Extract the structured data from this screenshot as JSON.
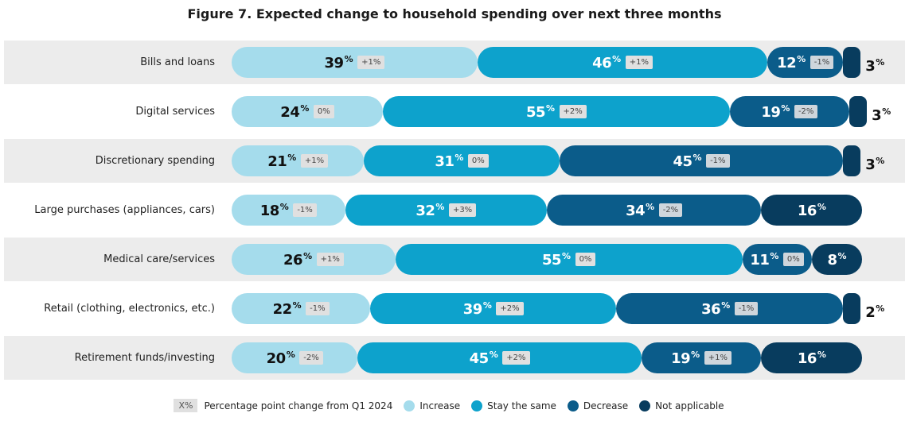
{
  "title": "Figure 7. Expected change to household spending over next three months",
  "colors": {
    "increase": "#a5dcec",
    "stay_the_same": "#0da2cc",
    "decrease": "#0b5c8a",
    "not_applicable": "#083c5e"
  },
  "legend": {
    "key_symbol": "X%",
    "key_label": "Percentage point change from Q1 2024",
    "items": [
      "Increase",
      "Stay the same",
      "Decrease",
      "Not applicable"
    ]
  },
  "chart_data": {
    "type": "bar",
    "orientation": "horizontal-stacked",
    "title": "Figure 7. Expected change to household spending over next three months",
    "categories": [
      "Bills and loans",
      "Digital services",
      "Discretionary spending",
      "Large purchases (appliances, cars)",
      "Medical care/services",
      "Retail (clothing, electronics, etc.)",
      "Retirement funds/investing"
    ],
    "series": [
      {
        "name": "Increase",
        "values": [
          39,
          24,
          21,
          18,
          26,
          22,
          20
        ],
        "changes": [
          "+1%",
          "0%",
          "+1%",
          "-1%",
          "+1%",
          "-1%",
          "-2%"
        ]
      },
      {
        "name": "Stay the same",
        "values": [
          46,
          55,
          31,
          32,
          55,
          39,
          45
        ],
        "changes": [
          "+1%",
          "+2%",
          "0%",
          "+3%",
          "0%",
          "+2%",
          "+2%"
        ]
      },
      {
        "name": "Decrease",
        "values": [
          12,
          19,
          45,
          34,
          11,
          36,
          19
        ],
        "changes": [
          "-1%",
          "-2%",
          "-1%",
          "-2%",
          "0%",
          "-1%",
          "+1%"
        ]
      },
      {
        "name": "Not applicable",
        "values": [
          3,
          3,
          3,
          16,
          8,
          2,
          16
        ],
        "changes": [
          "",
          "",
          "",
          "",
          "",
          "",
          ""
        ]
      }
    ],
    "unit": "%",
    "legend_position": "bottom-center"
  }
}
